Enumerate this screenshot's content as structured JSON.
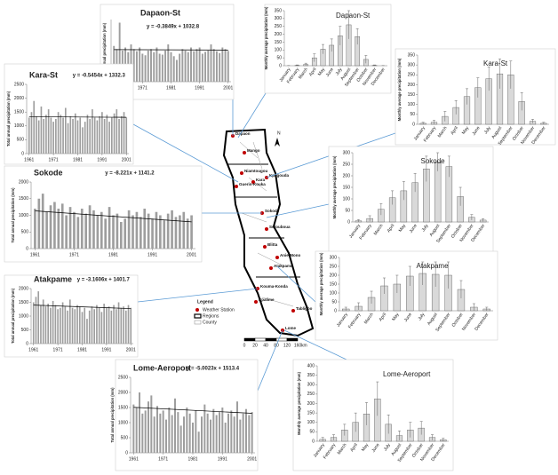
{
  "chart_data": [
    {
      "type": "bar",
      "title": "Dapaon-St",
      "ylabel": "Total annual precipitation (mm)",
      "color": "#9e9e9e",
      "x": [
        1961,
        1962,
        1963,
        1964,
        1965,
        1966,
        1967,
        1968,
        1969,
        1970,
        1971,
        1972,
        1973,
        1974,
        1975,
        1976,
        1977,
        1978,
        1979,
        1980,
        1981,
        1982,
        1983,
        1984,
        1985,
        1986,
        1987,
        1988,
        1989,
        1990,
        1991,
        1992,
        1993,
        1994,
        1995,
        1996,
        1997,
        1998,
        1999,
        2000,
        2001
      ],
      "values": [
        1150,
        1050,
        1900,
        1000,
        1100,
        950,
        1200,
        1050,
        980,
        1100,
        900,
        850,
        1000,
        1050,
        950,
        1100,
        900,
        870,
        1000,
        1200,
        950,
        820,
        700,
        900,
        1050,
        1000,
        950,
        1100,
        980,
        1050,
        1100,
        900,
        960,
        1000,
        1200,
        1050,
        980,
        920,
        1100,
        1050,
        990
      ],
      "xlim": [
        1960,
        2002
      ],
      "xticks": [
        1971,
        1981,
        1991,
        2001
      ],
      "ylim": [
        0,
        2000
      ],
      "trend": {
        "label": "y = -0.3849x + 1032.8",
        "slope": -0.3849,
        "intercept": 1032.8
      }
    },
    {
      "type": "bar",
      "title": "Kara-St",
      "ylabel": "Total annual precipitation (mm)",
      "color": "#9e9e9e",
      "x": [
        1961,
        1962,
        1963,
        1964,
        1965,
        1966,
        1967,
        1968,
        1969,
        1970,
        1971,
        1972,
        1973,
        1974,
        1975,
        1976,
        1977,
        1978,
        1979,
        1980,
        1981,
        1982,
        1983,
        1984,
        1985,
        1986,
        1987,
        1988,
        1989,
        1990,
        1991,
        1992,
        1993,
        1994,
        1995,
        1996,
        1997,
        1998,
        1999,
        2000,
        2001
      ],
      "values": [
        1300,
        1500,
        1900,
        1350,
        1200,
        1700,
        1250,
        1400,
        1600,
        1300,
        1150,
        1250,
        1500,
        1400,
        1300,
        1650,
        1100,
        1350,
        1250,
        1450,
        1200,
        1300,
        950,
        1150,
        1400,
        1250,
        1600,
        1300,
        1200,
        1350,
        1500,
        1250,
        1400,
        1150,
        1300,
        1450,
        1600,
        1250,
        1350,
        1500,
        1300
      ],
      "xlim": [
        1960,
        2002
      ],
      "xticks": [
        1961,
        1971,
        1981,
        1991,
        2001
      ],
      "ylim": [
        0,
        2500
      ],
      "yticks": [
        0,
        500,
        1000,
        1500,
        2000,
        2500
      ],
      "trend": {
        "label": "y = -0.5454x + 1332.3",
        "slope": -0.5454,
        "intercept": 1332.3
      }
    },
    {
      "type": "bar",
      "title": "Sokode",
      "ylabel": "Total annual precipitation (mm)",
      "color": "#9e9e9e",
      "x": [
        1961,
        1962,
        1963,
        1964,
        1965,
        1966,
        1967,
        1968,
        1969,
        1970,
        1971,
        1972,
        1973,
        1974,
        1975,
        1976,
        1977,
        1978,
        1979,
        1980,
        1981,
        1982,
        1983,
        1984,
        1985,
        1986,
        1987,
        1988,
        1989,
        1990,
        1991,
        1992,
        1993,
        1994,
        1995,
        1996,
        1997,
        1998,
        1999,
        2000,
        2001
      ],
      "values": [
        1200,
        1500,
        1650,
        1100,
        1300,
        1400,
        1200,
        1350,
        1000,
        1250,
        1100,
        950,
        1200,
        1050,
        1300,
        1150,
        1000,
        1100,
        900,
        1250,
        1000,
        1050,
        800,
        900,
        1150,
        1000,
        1100,
        950,
        1200,
        1050,
        900,
        1100,
        1000,
        850,
        1050,
        1150,
        950,
        1000,
        1100,
        900,
        1000
      ],
      "xlim": [
        1960,
        2002
      ],
      "xticks": [
        1961,
        1971,
        1981,
        1991,
        2001
      ],
      "ylim": [
        0,
        2000
      ],
      "yticks": [
        0,
        500,
        1000,
        1500,
        2000
      ],
      "trend": {
        "label": "y = -8.221x + 1141.2",
        "slope": -8.221,
        "intercept": 1141.2
      }
    },
    {
      "type": "bar",
      "title": "Atakpame",
      "ylabel": "Total annual precipitation (mm)",
      "color": "#9e9e9e",
      "x": [
        1961,
        1962,
        1963,
        1964,
        1965,
        1966,
        1967,
        1968,
        1969,
        1970,
        1971,
        1972,
        1973,
        1974,
        1975,
        1976,
        1977,
        1978,
        1979,
        1980,
        1981,
        1982,
        1983,
        1984,
        1985,
        1986,
        1987,
        1988,
        1989,
        1990,
        1991,
        1992,
        1993,
        1994,
        1995,
        1996,
        1997,
        1998,
        1999,
        2000,
        2001
      ],
      "values": [
        1500,
        1700,
        1900,
        1400,
        1600,
        1350,
        1450,
        1300,
        1550,
        1400,
        1250,
        1300,
        1500,
        1350,
        1200,
        1600,
        1300,
        1250,
        1400,
        1350,
        1150,
        1300,
        900,
        1200,
        1350,
        1250,
        1400,
        1300,
        1150,
        1450,
        1300,
        1350,
        1200,
        1400,
        1250,
        1500,
        1300,
        1350,
        1200,
        1400,
        1300
      ],
      "xlim": [
        1960,
        2002
      ],
      "xticks": [
        1961,
        1971,
        1981,
        1991,
        2001
      ],
      "ylim": [
        0,
        2000
      ],
      "yticks": [
        0,
        500,
        1000,
        1500,
        2000
      ],
      "trend": {
        "label": "y = -3.1606x + 1401.7",
        "slope": -3.1606,
        "intercept": 1401.7
      }
    },
    {
      "type": "bar",
      "title": "Lome-Aeroport",
      "ylabel": "Total annual precipitation (mm)",
      "color": "#9e9e9e",
      "x": [
        1961,
        1962,
        1963,
        1964,
        1965,
        1966,
        1967,
        1968,
        1969,
        1970,
        1971,
        1972,
        1973,
        1974,
        1975,
        1976,
        1977,
        1978,
        1979,
        1980,
        1981,
        1982,
        1983,
        1984,
        1985,
        1986,
        1987,
        1988,
        1989,
        1990,
        1991,
        1992,
        1993,
        1994,
        1995,
        1996,
        1997,
        1998,
        1999,
        2000,
        2001
      ],
      "values": [
        1600,
        1500,
        2000,
        1300,
        1400,
        1700,
        1900,
        1200,
        1550,
        1300,
        1400,
        1100,
        1500,
        1250,
        1800,
        1350,
        900,
        1200,
        1500,
        1300,
        1000,
        1400,
        700,
        1200,
        1600,
        1300,
        1100,
        1450,
        1250,
        1350,
        1500,
        1000,
        1300,
        1400,
        1200,
        1700,
        1100,
        1300,
        1450,
        1250,
        1350
      ],
      "xlim": [
        1960,
        2002
      ],
      "xticks": [
        1961,
        1971,
        1981,
        1991,
        2001
      ],
      "ylim": [
        0,
        2500
      ],
      "yticks": [
        0,
        500,
        1000,
        1500,
        2000,
        2500
      ],
      "trend": {
        "label": "y = -5.0023x + 1513.4",
        "slope": -5.0023,
        "intercept": 1513.4
      }
    },
    {
      "type": "errorbar",
      "title": "Dapaon-St",
      "ylabel": "Monthly average precipitation (mm)",
      "color": "#d9d9d9",
      "categories": [
        "January",
        "February",
        "March",
        "April",
        "May",
        "June",
        "July",
        "August",
        "September",
        "October",
        "November",
        "December"
      ],
      "values": [
        0,
        2,
        8,
        50,
        105,
        130,
        190,
        260,
        185,
        40,
        2,
        0
      ],
      "errors": [
        1,
        3,
        8,
        25,
        30,
        40,
        60,
        90,
        50,
        25,
        3,
        1
      ],
      "ylim": [
        0,
        350
      ],
      "yticks": [
        0,
        50,
        100,
        150,
        200,
        250,
        300,
        350
      ]
    },
    {
      "type": "errorbar",
      "title": "Kara-St",
      "ylabel": "Monthly average precipitation (mm)",
      "color": "#d9d9d9",
      "categories": [
        "January",
        "February",
        "March",
        "April",
        "May",
        "June",
        "July",
        "August",
        "September",
        "October",
        "November",
        "December"
      ],
      "values": [
        5,
        10,
        40,
        85,
        140,
        185,
        230,
        255,
        250,
        115,
        15,
        5
      ],
      "errors": [
        5,
        10,
        25,
        35,
        40,
        50,
        60,
        75,
        70,
        45,
        10,
        5
      ],
      "ylim": [
        0,
        350
      ],
      "yticks": [
        0,
        50,
        100,
        150,
        200,
        250,
        300,
        350
      ]
    },
    {
      "type": "errorbar",
      "title": "Sokode",
      "ylabel": "Monthly average precipitation (mm)",
      "color": "#d9d9d9",
      "categories": [
        "January",
        "February",
        "March",
        "April",
        "May",
        "June",
        "July",
        "August",
        "September",
        "October",
        "November",
        "December"
      ],
      "values": [
        5,
        15,
        55,
        105,
        135,
        170,
        230,
        260,
        240,
        110,
        20,
        8
      ],
      "errors": [
        5,
        12,
        25,
        30,
        40,
        40,
        55,
        40,
        45,
        40,
        12,
        6
      ],
      "ylim": [
        0,
        300
      ],
      "yticks": [
        0,
        50,
        100,
        150,
        200,
        250,
        300
      ]
    },
    {
      "type": "errorbar",
      "title": "Atakpame",
      "ylabel": "Monthly average precipitation (mm)",
      "color": "#d9d9d9",
      "categories": [
        "January",
        "February",
        "March",
        "April",
        "May",
        "June",
        "July",
        "August",
        "September",
        "October",
        "November",
        "December"
      ],
      "values": [
        10,
        25,
        75,
        140,
        150,
        195,
        210,
        205,
        200,
        120,
        20,
        10
      ],
      "errors": [
        10,
        20,
        35,
        45,
        50,
        55,
        65,
        70,
        75,
        50,
        20,
        10
      ],
      "ylim": [
        0,
        300
      ],
      "yticks": [
        0,
        50,
        100,
        150,
        200,
        250,
        300
      ]
    },
    {
      "type": "errorbar",
      "title": "Lome-Aeroport",
      "ylabel": "Monthly average precipitation (mm)",
      "color": "#d9d9d9",
      "categories": [
        "January",
        "February",
        "March",
        "April",
        "May",
        "June",
        "July",
        "August",
        "September",
        "October",
        "November",
        "December"
      ],
      "values": [
        10,
        20,
        60,
        100,
        145,
        225,
        90,
        30,
        60,
        70,
        20,
        8
      ],
      "errors": [
        10,
        15,
        30,
        50,
        60,
        90,
        50,
        25,
        40,
        35,
        15,
        8
      ],
      "ylim": [
        0,
        400
      ],
      "yticks": [
        0,
        50,
        100,
        150,
        200,
        250,
        300,
        350,
        400
      ]
    }
  ],
  "map": {
    "north": "N",
    "stations": [
      "Dapaon",
      "Mango",
      "Niamtougou",
      "Kara",
      "Guerin-Kouka",
      "Kpagouda",
      "Sokode",
      "Sotouboua",
      "Blitta",
      "Anie-Mono",
      "Atakpame",
      "Kouma-Konda",
      "Kpalime",
      "Tabligbo",
      "Lome"
    ],
    "legend": {
      "title": "Legend",
      "items": [
        "Weather Station",
        "Regions",
        "County"
      ]
    },
    "scale": {
      "ticks": [
        "0",
        "20",
        "40",
        "80",
        "120",
        "160"
      ],
      "unit": "km"
    }
  }
}
